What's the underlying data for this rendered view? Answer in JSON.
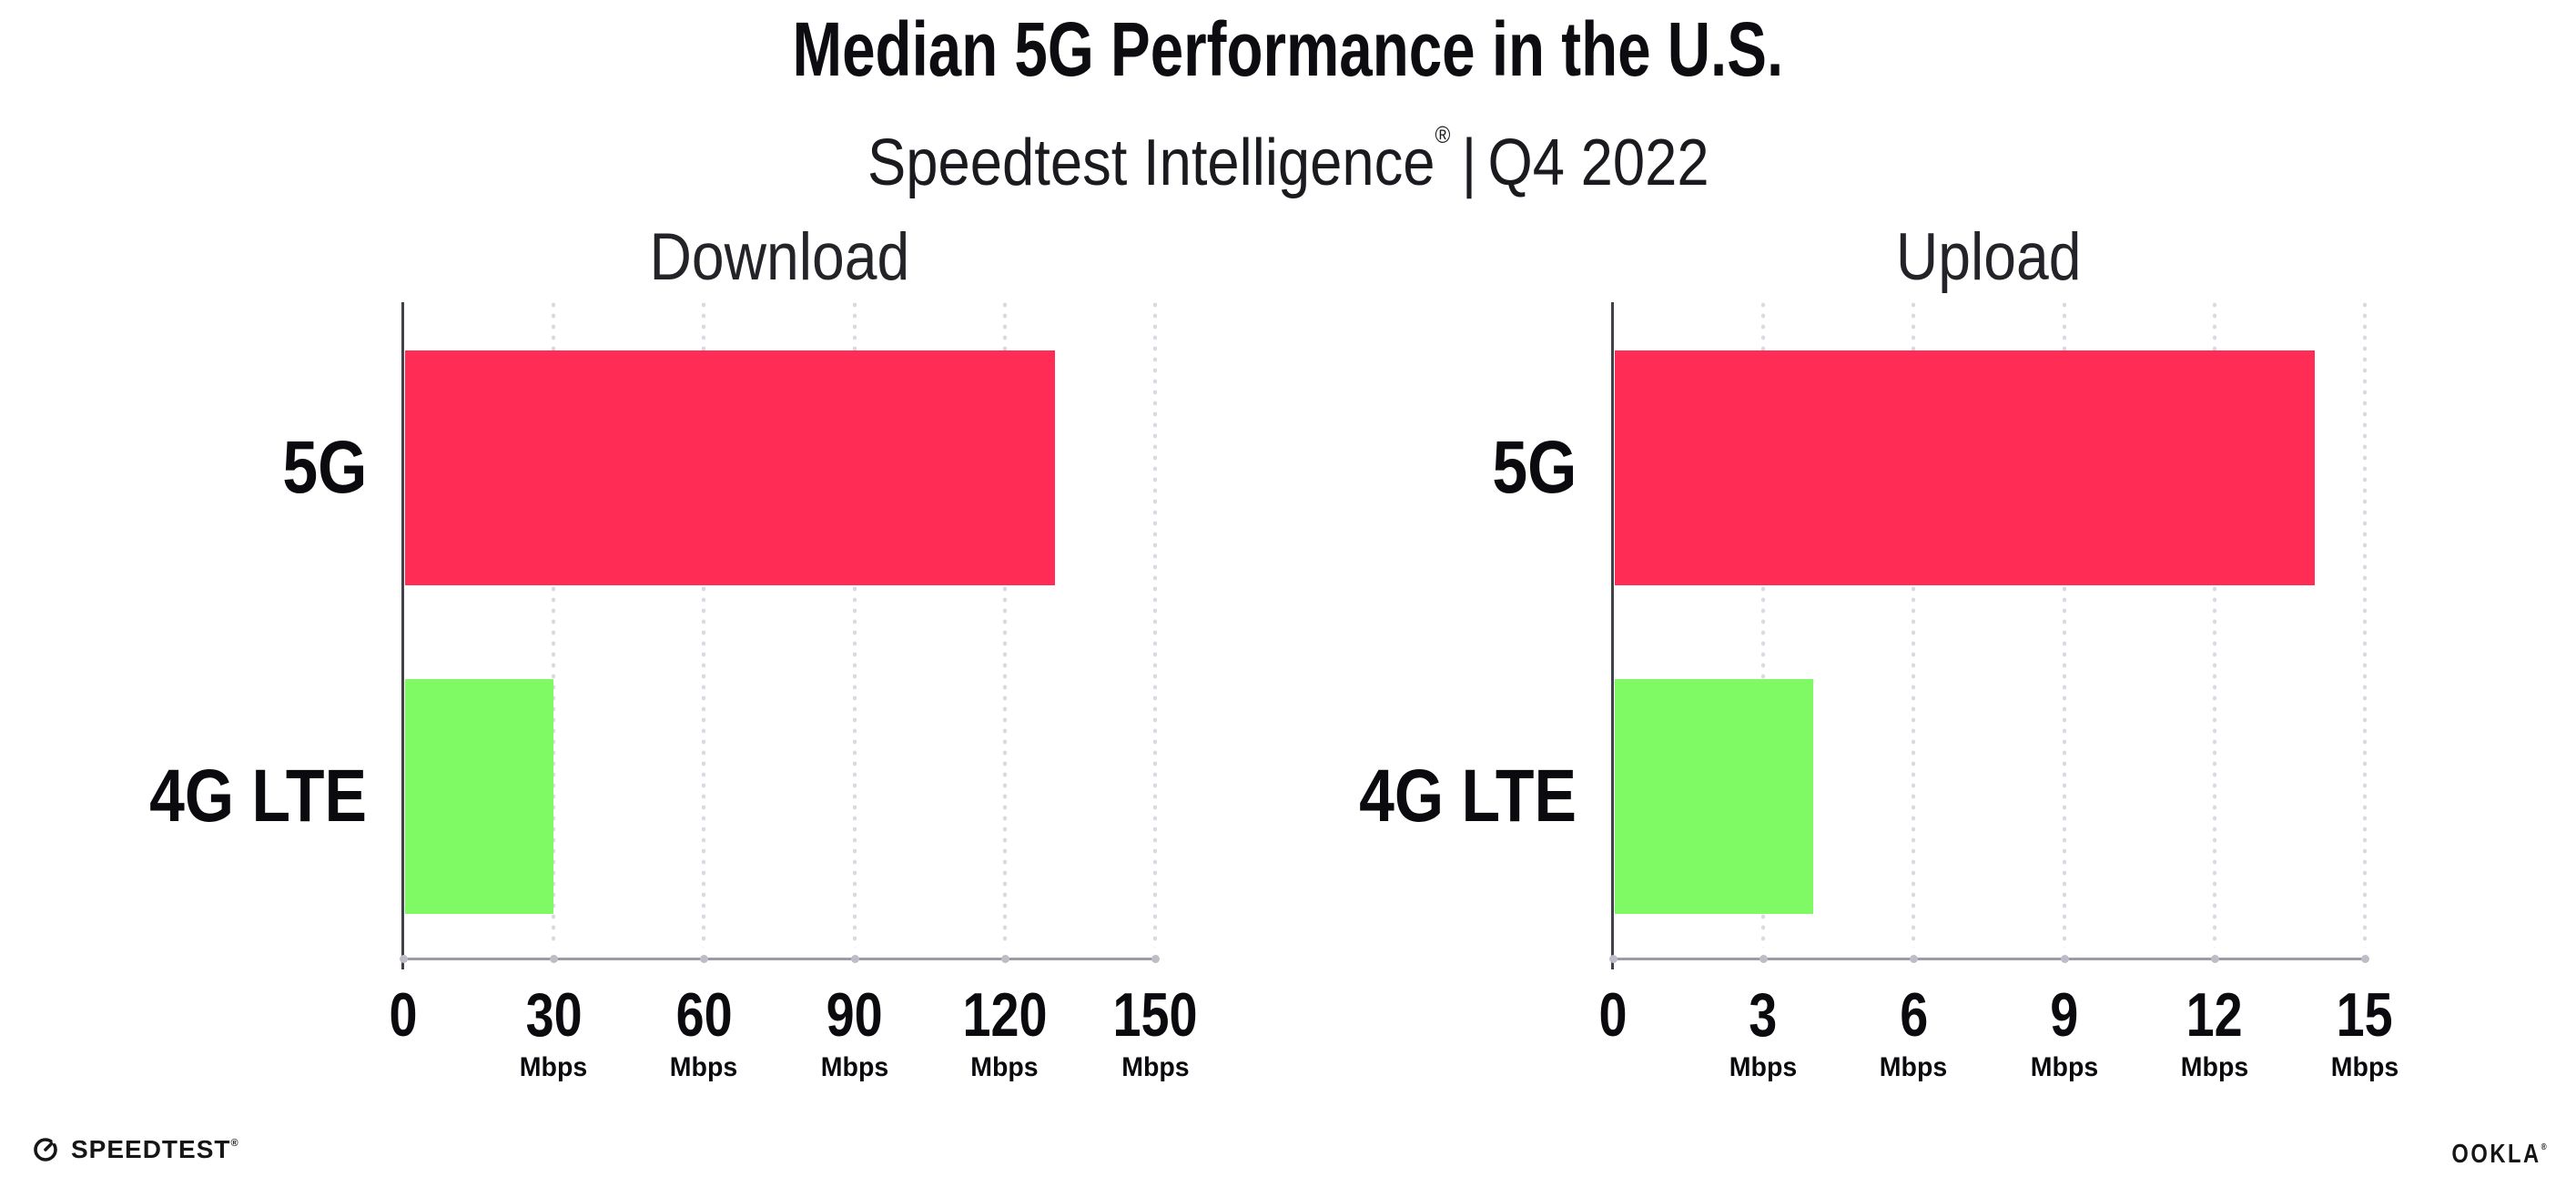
{
  "header": {
    "title": "Median 5G Performance in the U.S.",
    "subtitle": {
      "brand": "Speedtest Intelligence",
      "registered_mark": "®",
      "separator": "|",
      "period": "Q4 2022"
    }
  },
  "chart_data": [
    {
      "type": "bar",
      "orientation": "horizontal",
      "title": "Download",
      "categories": [
        "5G",
        "4G LTE"
      ],
      "values": [
        130,
        30
      ],
      "unit": "Mbps",
      "xlabel": "Mbps",
      "xlim": [
        0,
        150
      ],
      "xticks": [
        0,
        30,
        60,
        90,
        120,
        150
      ],
      "bar_colors": [
        "#ff2d56",
        "#80fa64"
      ],
      "grid": "vertical-dotted",
      "legend": "none"
    },
    {
      "type": "bar",
      "orientation": "horizontal",
      "title": "Upload",
      "categories": [
        "5G",
        "4G LTE"
      ],
      "values": [
        14,
        4
      ],
      "unit": "Mbps",
      "xlabel": "Mbps",
      "xlim": [
        0,
        15
      ],
      "xticks": [
        0,
        3,
        6,
        9,
        12,
        15
      ],
      "bar_colors": [
        "#ff2d56",
        "#80fa64"
      ],
      "grid": "vertical-dotted",
      "legend": "none"
    }
  ],
  "colors": {
    "bar_5g": "#ff2d56",
    "bar_4g_lte": "#80fa64",
    "axis_line": "#9b9ba3",
    "y_axis_line": "#41414a",
    "grid_dot": "#d9d9e4",
    "text": "#0b0b0f"
  },
  "footer": {
    "speedtest_logo": "SPEEDTEST",
    "speedtest_mark": "®",
    "ookla_logo": "OOKLA",
    "ookla_mark": "®"
  }
}
